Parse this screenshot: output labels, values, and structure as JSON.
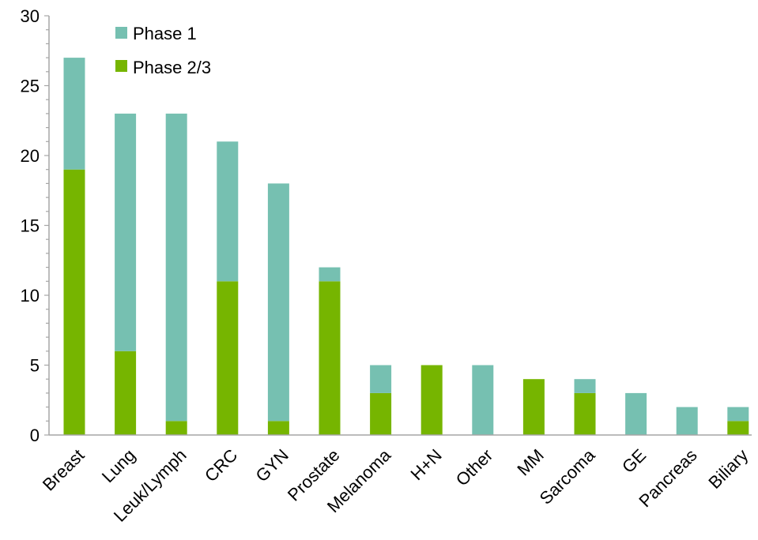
{
  "chart_data": {
    "type": "bar",
    "stacked": true,
    "categories": [
      "Breast",
      "Lung",
      "Leuk/Lymph",
      "CRC",
      "GYN",
      "Prostate",
      "Melanoma",
      "H+N",
      "Other",
      "MM",
      "Sarcoma",
      "GE",
      "Pancreas",
      "Biliary"
    ],
    "series": [
      {
        "name": "Phase 2/3",
        "color": "#76b500",
        "values": [
          19,
          6,
          1,
          11,
          1,
          11,
          3,
          5,
          0,
          4,
          3,
          0,
          0,
          1
        ]
      },
      {
        "name": "Phase 1",
        "color": "#76c0b1",
        "values": [
          8,
          17,
          22,
          10,
          17,
          1,
          2,
          0,
          5,
          0,
          1,
          3,
          2,
          1
        ]
      }
    ],
    "ylim": [
      0,
      30
    ],
    "yticks": [
      0,
      5,
      10,
      15,
      20,
      25,
      30
    ],
    "ytick_labels": [
      "0",
      "5",
      "10",
      "15",
      "20",
      "25",
      "30"
    ],
    "minor_tick_step": 1,
    "grid": false,
    "legend": {
      "placement": "top-left",
      "entries": [
        "Phase 1",
        "Phase 2/3"
      ]
    },
    "axis_color": "#a6a6a6",
    "xlabel": "",
    "ylabel": "",
    "title": ""
  }
}
